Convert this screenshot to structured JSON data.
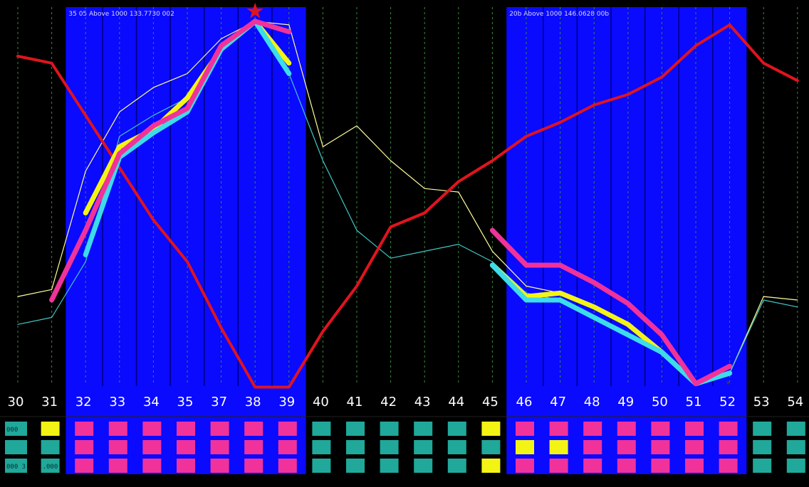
{
  "colors": {
    "background": "#000000",
    "band": "#0a0aff",
    "band_border": "#000080",
    "grid": "#3a8a3a",
    "red": "#e0141e",
    "yellow": "#f4f414",
    "cyan": "#3cdcea",
    "magenta": "#f0329a",
    "thin_yellow": "#ffff99",
    "thin_cyan": "#40c8c8",
    "pink_cell": "#f0329a",
    "teal_cell": "#20a89a",
    "yellow_cell": "#f4f414"
  },
  "chart_data": {
    "type": "line",
    "title": "",
    "xlabel": "",
    "ylabel": "",
    "ylim": [
      0,
      100
    ],
    "categories": [
      "30",
      "31",
      "32",
      "33",
      "34",
      "35",
      "37",
      "38",
      "39",
      "40",
      "41",
      "42",
      "43",
      "44",
      "45",
      "46",
      "47",
      "48",
      "49",
      "50",
      "51",
      "52",
      "53",
      "54"
    ],
    "bands": [
      {
        "from": "32",
        "to": "39",
        "caption": "35  05 Above  1000  133.7730  002"
      },
      {
        "from": "46",
        "to": "52",
        "caption": "20b Above  1000  146.0628  00b"
      }
    ],
    "series": [
      {
        "key": "red",
        "thick": true,
        "values": [
          90,
          88,
          73,
          58,
          43,
          31,
          12,
          -5,
          -5,
          11,
          24,
          41,
          45,
          54,
          60,
          67,
          71,
          76,
          79,
          84,
          93,
          99,
          88,
          83
        ]
      },
      {
        "key": "thin_yellow",
        "thick": false,
        "values": [
          21,
          23,
          57,
          74,
          81,
          85,
          95,
          100,
          99,
          64,
          70,
          60,
          52,
          51,
          34,
          24,
          22,
          18,
          13,
          5,
          -4,
          -1,
          21,
          20
        ]
      },
      {
        "key": "thin_cyan",
        "thick": false,
        "values": [
          13,
          15,
          31,
          67,
          73,
          78,
          92,
          100,
          85,
          60,
          40,
          32,
          34,
          36,
          31,
          22,
          20,
          15,
          10,
          5,
          -4,
          -1,
          20,
          18
        ]
      },
      {
        "key": "yellow",
        "thick": true,
        "values": [
          null,
          null,
          45,
          64,
          69,
          78,
          92,
          100,
          88,
          null,
          null,
          null,
          null,
          null,
          30,
          21,
          22,
          18,
          13,
          5,
          -4,
          -1,
          null,
          null
        ]
      },
      {
        "key": "cyan",
        "thick": true,
        "values": [
          null,
          null,
          33,
          61,
          68,
          74,
          92,
          100,
          85,
          null,
          null,
          null,
          null,
          null,
          30,
          20,
          20,
          15,
          10,
          5,
          -4,
          -1,
          null,
          null
        ]
      },
      {
        "key": "magenta",
        "thick": true,
        "values": [
          null,
          20,
          40,
          62,
          70,
          75,
          93,
          100,
          97,
          null,
          null,
          null,
          null,
          null,
          40,
          30,
          30,
          25,
          19,
          10,
          -4,
          1,
          null,
          null
        ]
      }
    ],
    "marker": {
      "category": "38",
      "value": 103,
      "symbol": "★"
    },
    "small_marker": {
      "category": "52",
      "value": -3,
      "symbol": "*"
    },
    "cell_rows": [
      {
        "labels": {
          "30": "000"
        },
        "colors": [
          "teal",
          "yellow",
          "pink",
          "pink",
          "pink",
          "pink",
          "pink",
          "pink",
          "pink",
          "teal",
          "teal",
          "teal",
          "teal",
          "teal",
          "yellow",
          "pink",
          "pink",
          "pink",
          "pink",
          "pink",
          "pink",
          "pink",
          "teal",
          "teal"
        ]
      },
      {
        "labels": {},
        "colors": [
          "teal",
          "teal",
          "pink",
          "pink",
          "pink",
          "pink",
          "pink",
          "pink",
          "pink",
          "teal",
          "teal",
          "teal",
          "teal",
          "teal",
          "teal",
          "yellow",
          "yellow",
          "pink",
          "pink",
          "pink",
          "pink",
          "pink",
          "teal",
          "teal"
        ]
      },
      {
        "labels": {
          "30": "000 3",
          "31": ".000"
        },
        "colors": [
          "teal",
          "teal",
          "pink",
          "pink",
          "pink",
          "pink",
          "pink",
          "pink",
          "pink",
          "teal",
          "teal",
          "teal",
          "teal",
          "teal",
          "yellow",
          "pink",
          "pink",
          "pink",
          "pink",
          "pink",
          "pink",
          "pink",
          "teal",
          "teal"
        ]
      }
    ]
  }
}
